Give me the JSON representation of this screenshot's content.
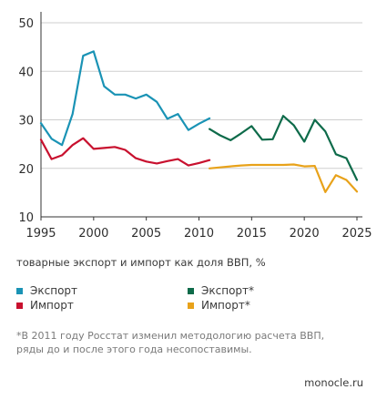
{
  "colors": {
    "export": "#1a93b5",
    "import": "#c8102e",
    "export_new": "#0e6b4a",
    "import_new": "#e8a21a",
    "grid": "#cfcfcf",
    "axis": "#333333"
  },
  "chart_data": {
    "type": "line",
    "xlim": [
      1995,
      2025
    ],
    "ylim": [
      10,
      50
    ],
    "x_ticks": [
      1995,
      2000,
      2005,
      2010,
      2015,
      2020,
      2025
    ],
    "y_ticks": [
      10,
      20,
      30,
      40,
      50
    ],
    "grid": "horizontal",
    "series": [
      {
        "key": "export",
        "name": "Экспорт",
        "x": [
          1995,
          1996,
          1997,
          1998,
          1999,
          2000,
          2001,
          2002,
          2003,
          2004,
          2005,
          2006,
          2007,
          2008,
          2009,
          2010,
          2011
        ],
        "values": [
          29.3,
          26.1,
          24.8,
          31.2,
          43.2,
          44.1,
          36.9,
          35.2,
          35.2,
          34.4,
          35.2,
          33.7,
          30.2,
          31.2,
          27.9,
          29.2,
          30.3
        ]
      },
      {
        "key": "import",
        "name": "Импорт",
        "x": [
          1995,
          1996,
          1997,
          1998,
          1999,
          2000,
          2001,
          2002,
          2003,
          2004,
          2005,
          2006,
          2007,
          2008,
          2009,
          2010,
          2011
        ],
        "values": [
          25.9,
          21.9,
          22.7,
          24.8,
          26.2,
          24.0,
          24.2,
          24.4,
          23.8,
          22.1,
          21.4,
          21.0,
          21.5,
          21.9,
          20.6,
          21.1,
          21.7
        ]
      },
      {
        "key": "export_new",
        "name": "Экспорт*",
        "x": [
          2011,
          2012,
          2013,
          2014,
          2015,
          2016,
          2017,
          2018,
          2019,
          2020,
          2021,
          2022,
          2023,
          2024,
          2025
        ],
        "values": [
          28.1,
          26.8,
          25.8,
          27.2,
          28.7,
          25.9,
          26.0,
          30.8,
          28.9,
          25.5,
          30.0,
          27.6,
          22.9,
          22.1,
          17.6
        ]
      },
      {
        "key": "import_new",
        "name": "Импорт*",
        "x": [
          2011,
          2012,
          2013,
          2014,
          2015,
          2016,
          2017,
          2018,
          2019,
          2020,
          2021,
          2022,
          2023,
          2024,
          2025
        ],
        "values": [
          20.0,
          20.2,
          20.4,
          20.6,
          20.7,
          20.7,
          20.7,
          20.7,
          20.8,
          20.4,
          20.5,
          15.1,
          18.6,
          17.6,
          15.2
        ]
      }
    ]
  },
  "caption": "товарные экспорт и импорт как доля ВВП, %",
  "legend": [
    {
      "label": "Экспорт",
      "color": "#1a93b5"
    },
    {
      "label": "Экспорт*",
      "color": "#0e6b4a"
    },
    {
      "label": "Импорт",
      "color": "#c8102e"
    },
    {
      "label": "Импорт*",
      "color": "#e8a21a"
    }
  ],
  "note": {
    "line1": "*В 2011 году Росстат изменил методологию расчета ВВП,",
    "line2": "ряды до и после этого года несопоставимы."
  },
  "source": "monocle.ru"
}
